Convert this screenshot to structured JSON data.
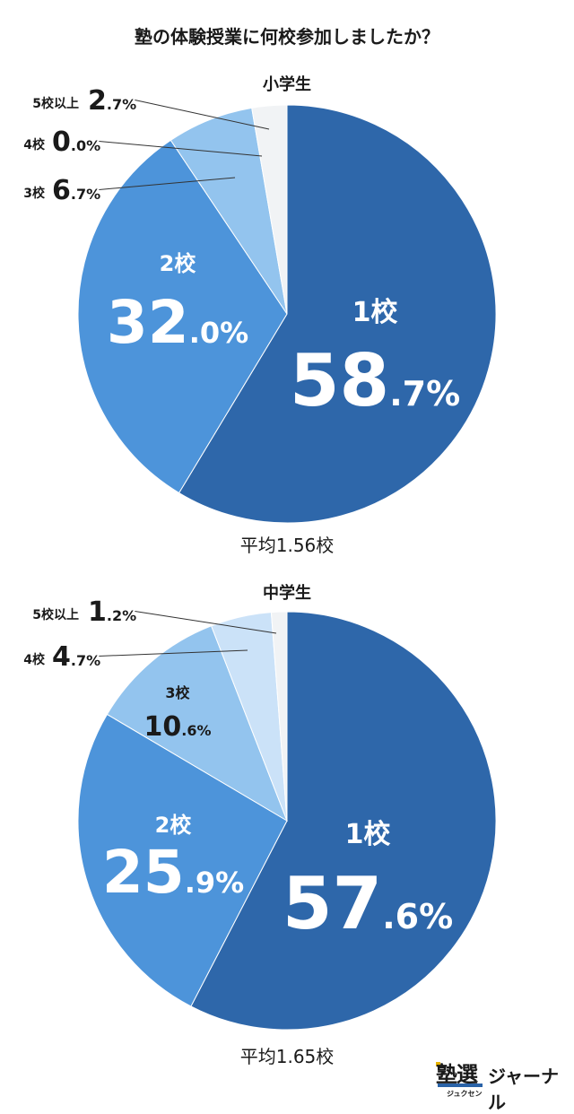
{
  "title": "塾の体験授業に何校参加しましたか？",
  "colors": {
    "slice_1": "#2e67aa",
    "slice_2": "#4d94da",
    "slice_3": "#93c4ee",
    "slice_4": "#cbe2f8",
    "slice_5": "#f1f3f5",
    "text_dark": "#1a1a1a",
    "text_light": "#ffffff",
    "leader": "#333333"
  },
  "logo": {
    "mark": "塾選",
    "sub": "ジュクセン",
    "name": "ジャーナル"
  },
  "chart_data": [
    {
      "type": "pie",
      "title": "小学生",
      "caption": "平均1.56校",
      "categories": [
        "1校",
        "2校",
        "3校",
        "4校",
        "5校以上"
      ],
      "values": [
        58.7,
        32.0,
        6.7,
        0.0,
        2.7
      ],
      "labels": [
        {
          "name": "1校",
          "int": "58",
          "dec": ".7%"
        },
        {
          "name": "2校",
          "int": "32",
          "dec": ".0%"
        },
        {
          "name": "3校",
          "int": "6",
          "dec": ".7%"
        },
        {
          "name": "4校",
          "int": "0",
          "dec": ".0%"
        },
        {
          "name": "5校以上",
          "int": "2",
          "dec": ".7%"
        }
      ]
    },
    {
      "type": "pie",
      "title": "中学生",
      "caption": "平均1.65校",
      "categories": [
        "1校",
        "2校",
        "3校",
        "4校",
        "5校以上"
      ],
      "values": [
        57.6,
        25.9,
        10.6,
        4.7,
        1.2
      ],
      "labels": [
        {
          "name": "1校",
          "int": "57",
          "dec": ".6%"
        },
        {
          "name": "2校",
          "int": "25",
          "dec": ".9%"
        },
        {
          "name": "3校",
          "int": "10",
          "dec": ".6%"
        },
        {
          "name": "4校",
          "int": "4",
          "dec": ".7%"
        },
        {
          "name": "5校以上",
          "int": "1",
          "dec": ".2%"
        }
      ]
    }
  ]
}
